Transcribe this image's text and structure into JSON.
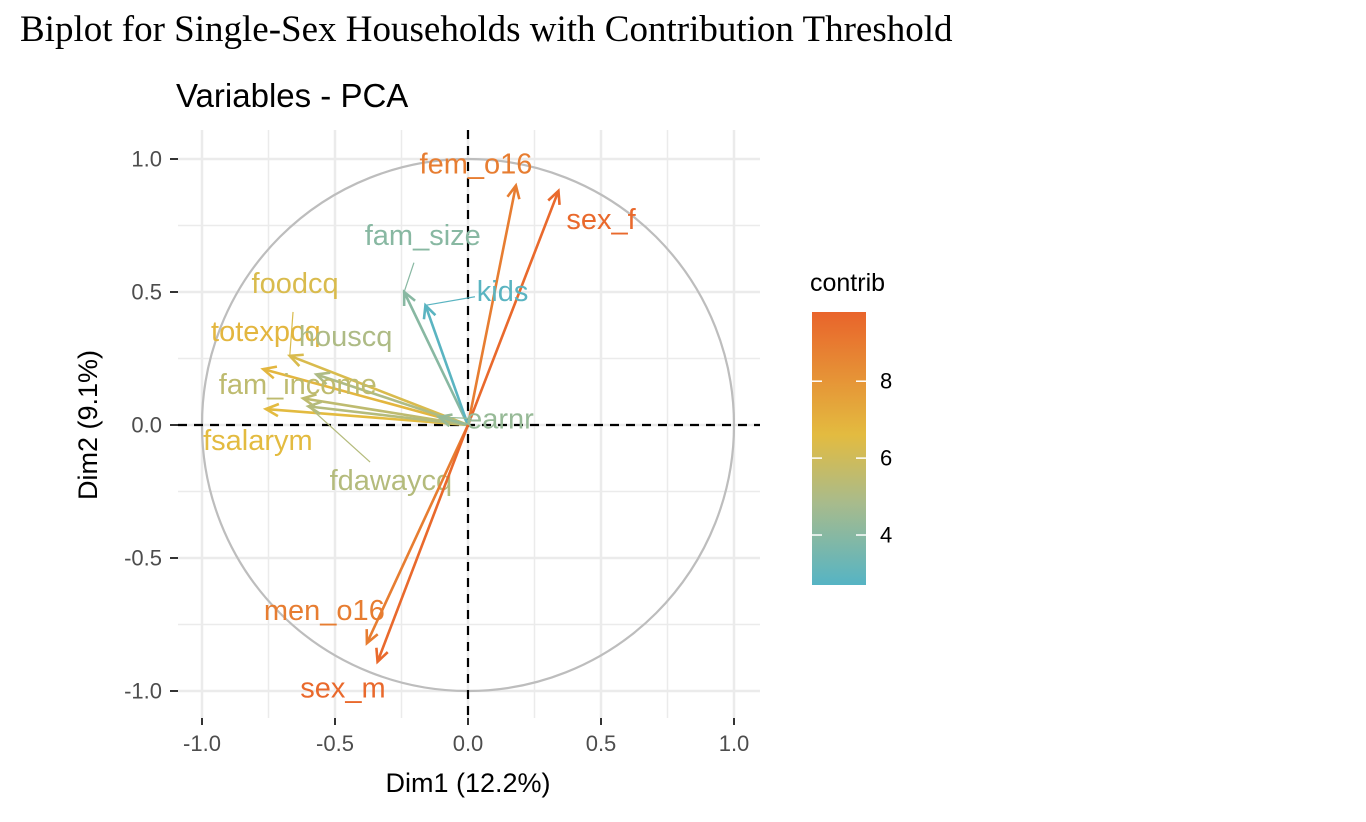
{
  "figure_title": "Biplot for Single-Sex Households with Contribution Threshold",
  "colors": {
    "grid": "#ebebeb",
    "circle": "#bdbdbd",
    "axis_text": "#4d4d4d",
    "contrib_low": "#56b4c4",
    "contrib_mid_low": "#a8bb8c",
    "contrib_mid": "#e3bb40",
    "contrib_high": "#e9642b"
  },
  "chart_data": {
    "type": "scatter",
    "subtype": "pca-variable-correlation-circle",
    "title": "Variables - PCA",
    "xlabel": "Dim1 (12.2%)",
    "ylabel": "Dim2 (9.1%)",
    "xlim": [
      -1.0,
      1.0
    ],
    "ylim": [
      -1.0,
      1.0
    ],
    "xticks": [
      "-1.0",
      "-0.5",
      "0.0",
      "0.5",
      "1.0"
    ],
    "xtick_values": [
      -1.0,
      -0.5,
      0.0,
      0.5,
      1.0
    ],
    "yticks": [
      "1.0",
      "0.5",
      "0.0",
      "-0.5",
      "-1.0"
    ],
    "ytick_values": [
      1.0,
      0.5,
      0.0,
      -0.5,
      -1.0
    ],
    "grid": true,
    "unit_circle": true,
    "reference_lines": "dashed at x=0 and y=0",
    "legend": {
      "title": "contrib",
      "placement": "right",
      "ticks": [
        "8",
        "6",
        "4"
      ],
      "tick_values": [
        8,
        6,
        4
      ],
      "range": [
        2.7,
        9.8
      ]
    },
    "variables": [
      {
        "name": "fem_o16",
        "x": 0.18,
        "y": 0.9,
        "contrib": 8.9,
        "label_x": 0.03,
        "label_y": 0.98
      },
      {
        "name": "sex_f",
        "x": 0.34,
        "y": 0.88,
        "contrib": 9.6,
        "label_x": 0.5,
        "label_y": 0.77
      },
      {
        "name": "fam_size",
        "x": -0.24,
        "y": 0.5,
        "contrib": 4.0,
        "label_x": -0.17,
        "label_y": 0.71
      },
      {
        "name": "kids",
        "x": -0.16,
        "y": 0.45,
        "contrib": 2.8,
        "label_x": 0.13,
        "label_y": 0.5
      },
      {
        "name": "foodcq",
        "x": -0.67,
        "y": 0.26,
        "contrib": 6.3,
        "label_x": -0.65,
        "label_y": 0.53
      },
      {
        "name": "totexpcq",
        "x": -0.77,
        "y": 0.21,
        "contrib": 6.8,
        "label_x": -0.76,
        "label_y": 0.35
      },
      {
        "name": "houscq",
        "x": -0.57,
        "y": 0.19,
        "contrib": 5.0,
        "label_x": -0.46,
        "label_y": 0.33
      },
      {
        "name": "fam_income",
        "x": -0.62,
        "y": 0.1,
        "contrib": 5.5,
        "label_x": -0.64,
        "label_y": 0.15
      },
      {
        "name": "fsalarym",
        "x": -0.76,
        "y": 0.06,
        "contrib": 6.6,
        "label_x": -0.79,
        "label_y": -0.06
      },
      {
        "name": "fdawaycq",
        "x": -0.6,
        "y": 0.07,
        "contrib": 5.2,
        "label_x": -0.29,
        "label_y": -0.21
      },
      {
        "name": "earnr",
        "x": -0.11,
        "y": 0.03,
        "contrib": 4.4,
        "label_x": 0.12,
        "label_y": 0.02
      },
      {
        "name": "men_o16",
        "x": -0.38,
        "y": -0.82,
        "contrib": 8.9,
        "label_x": -0.54,
        "label_y": -0.7
      },
      {
        "name": "sex_m",
        "x": -0.34,
        "y": -0.89,
        "contrib": 9.6,
        "label_x": -0.47,
        "label_y": -0.99
      }
    ]
  }
}
